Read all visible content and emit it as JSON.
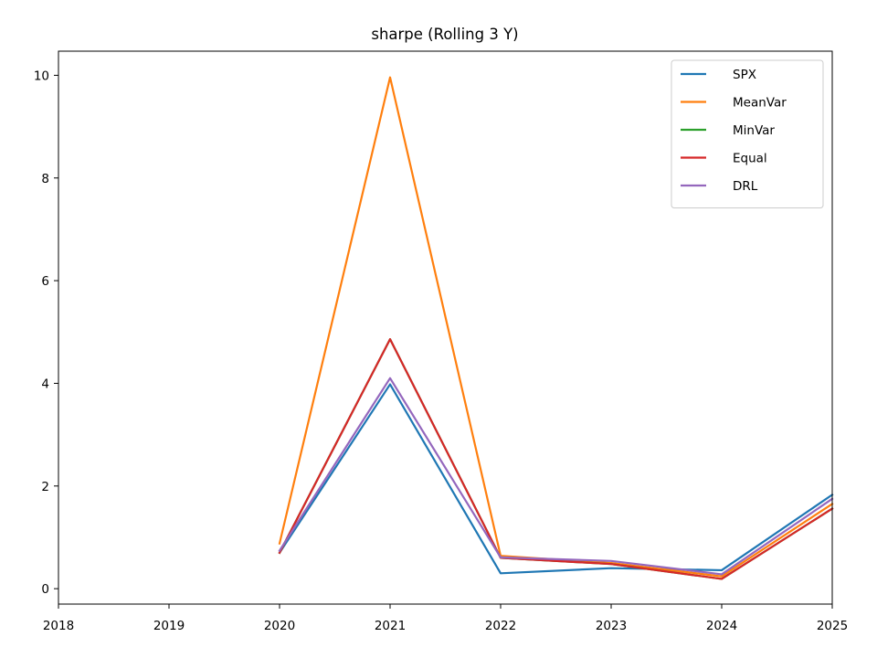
{
  "chart_data": {
    "type": "line",
    "title": "sharpe (Rolling 3 Y)",
    "xlabel": "",
    "ylabel": "",
    "x_ticks": [
      "2018",
      "2019",
      "2020",
      "2021",
      "2022",
      "2023",
      "2024",
      "2025"
    ],
    "y_ticks": [
      "0",
      "2",
      "4",
      "6",
      "8",
      "10"
    ],
    "xlim": [
      2018,
      2025
    ],
    "ylim": [
      -0.3,
      10.47
    ],
    "grid": false,
    "legend_position": "top-right",
    "x": [
      2020,
      2021,
      2022,
      2023,
      2024,
      2025
    ],
    "series": [
      {
        "name": "SPX",
        "color": "#1f77b4",
        "values": [
          0.7,
          3.98,
          0.3,
          0.4,
          0.36,
          1.83
        ]
      },
      {
        "name": "MeanVar",
        "color": "#ff7f0e",
        "values": [
          0.88,
          9.96,
          0.64,
          0.5,
          0.24,
          1.65
        ]
      },
      {
        "name": "MinVar",
        "color": "#2ca02c",
        "values": [
          0.7,
          4.86,
          0.6,
          0.48,
          0.19,
          1.56
        ]
      },
      {
        "name": "Equal",
        "color": "#d62728",
        "values": [
          0.7,
          4.86,
          0.6,
          0.48,
          0.19,
          1.56
        ]
      },
      {
        "name": "DRL",
        "color": "#9467bd",
        "values": [
          0.74,
          4.1,
          0.61,
          0.54,
          0.28,
          1.75
        ]
      }
    ]
  }
}
